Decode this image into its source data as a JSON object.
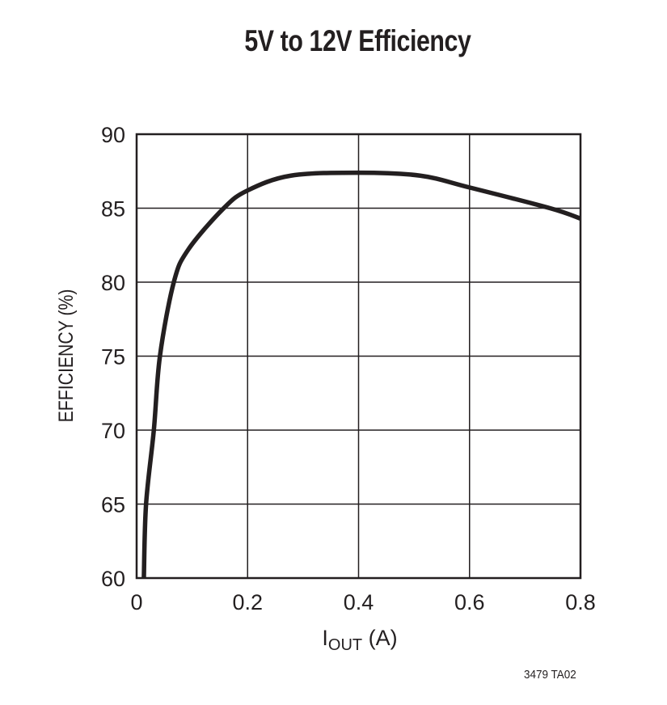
{
  "title": "5V to 12V Efficiency",
  "footnote": "3479 TA02",
  "chart_data": {
    "type": "line",
    "title": "5V to 12V Efficiency",
    "xlabel": "IOUT (A)",
    "xlabel_main": "I",
    "xlabel_sub": "OUT",
    "xlabel_unit": " (A)",
    "ylabel": "EFFICIENCY (%)",
    "xlim": [
      0,
      0.8
    ],
    "ylim": [
      60,
      90
    ],
    "x_ticks": [
      "0",
      "0.2",
      "0.4",
      "0.6",
      "0.8"
    ],
    "y_ticks": [
      "60",
      "65",
      "70",
      "75",
      "80",
      "85",
      "90"
    ],
    "grid": true,
    "legend": null,
    "series": [
      {
        "name": "Efficiency",
        "color": "#231f20",
        "x": [
          0.013,
          0.017,
          0.031,
          0.042,
          0.067,
          0.093,
          0.157,
          0.2,
          0.278,
          0.4,
          0.511,
          0.6,
          0.745,
          0.8
        ],
        "y": [
          60,
          65,
          70,
          75,
          80,
          82.2,
          85,
          86.2,
          87.2,
          87.4,
          87.2,
          86.4,
          85,
          84.3
        ]
      }
    ]
  }
}
